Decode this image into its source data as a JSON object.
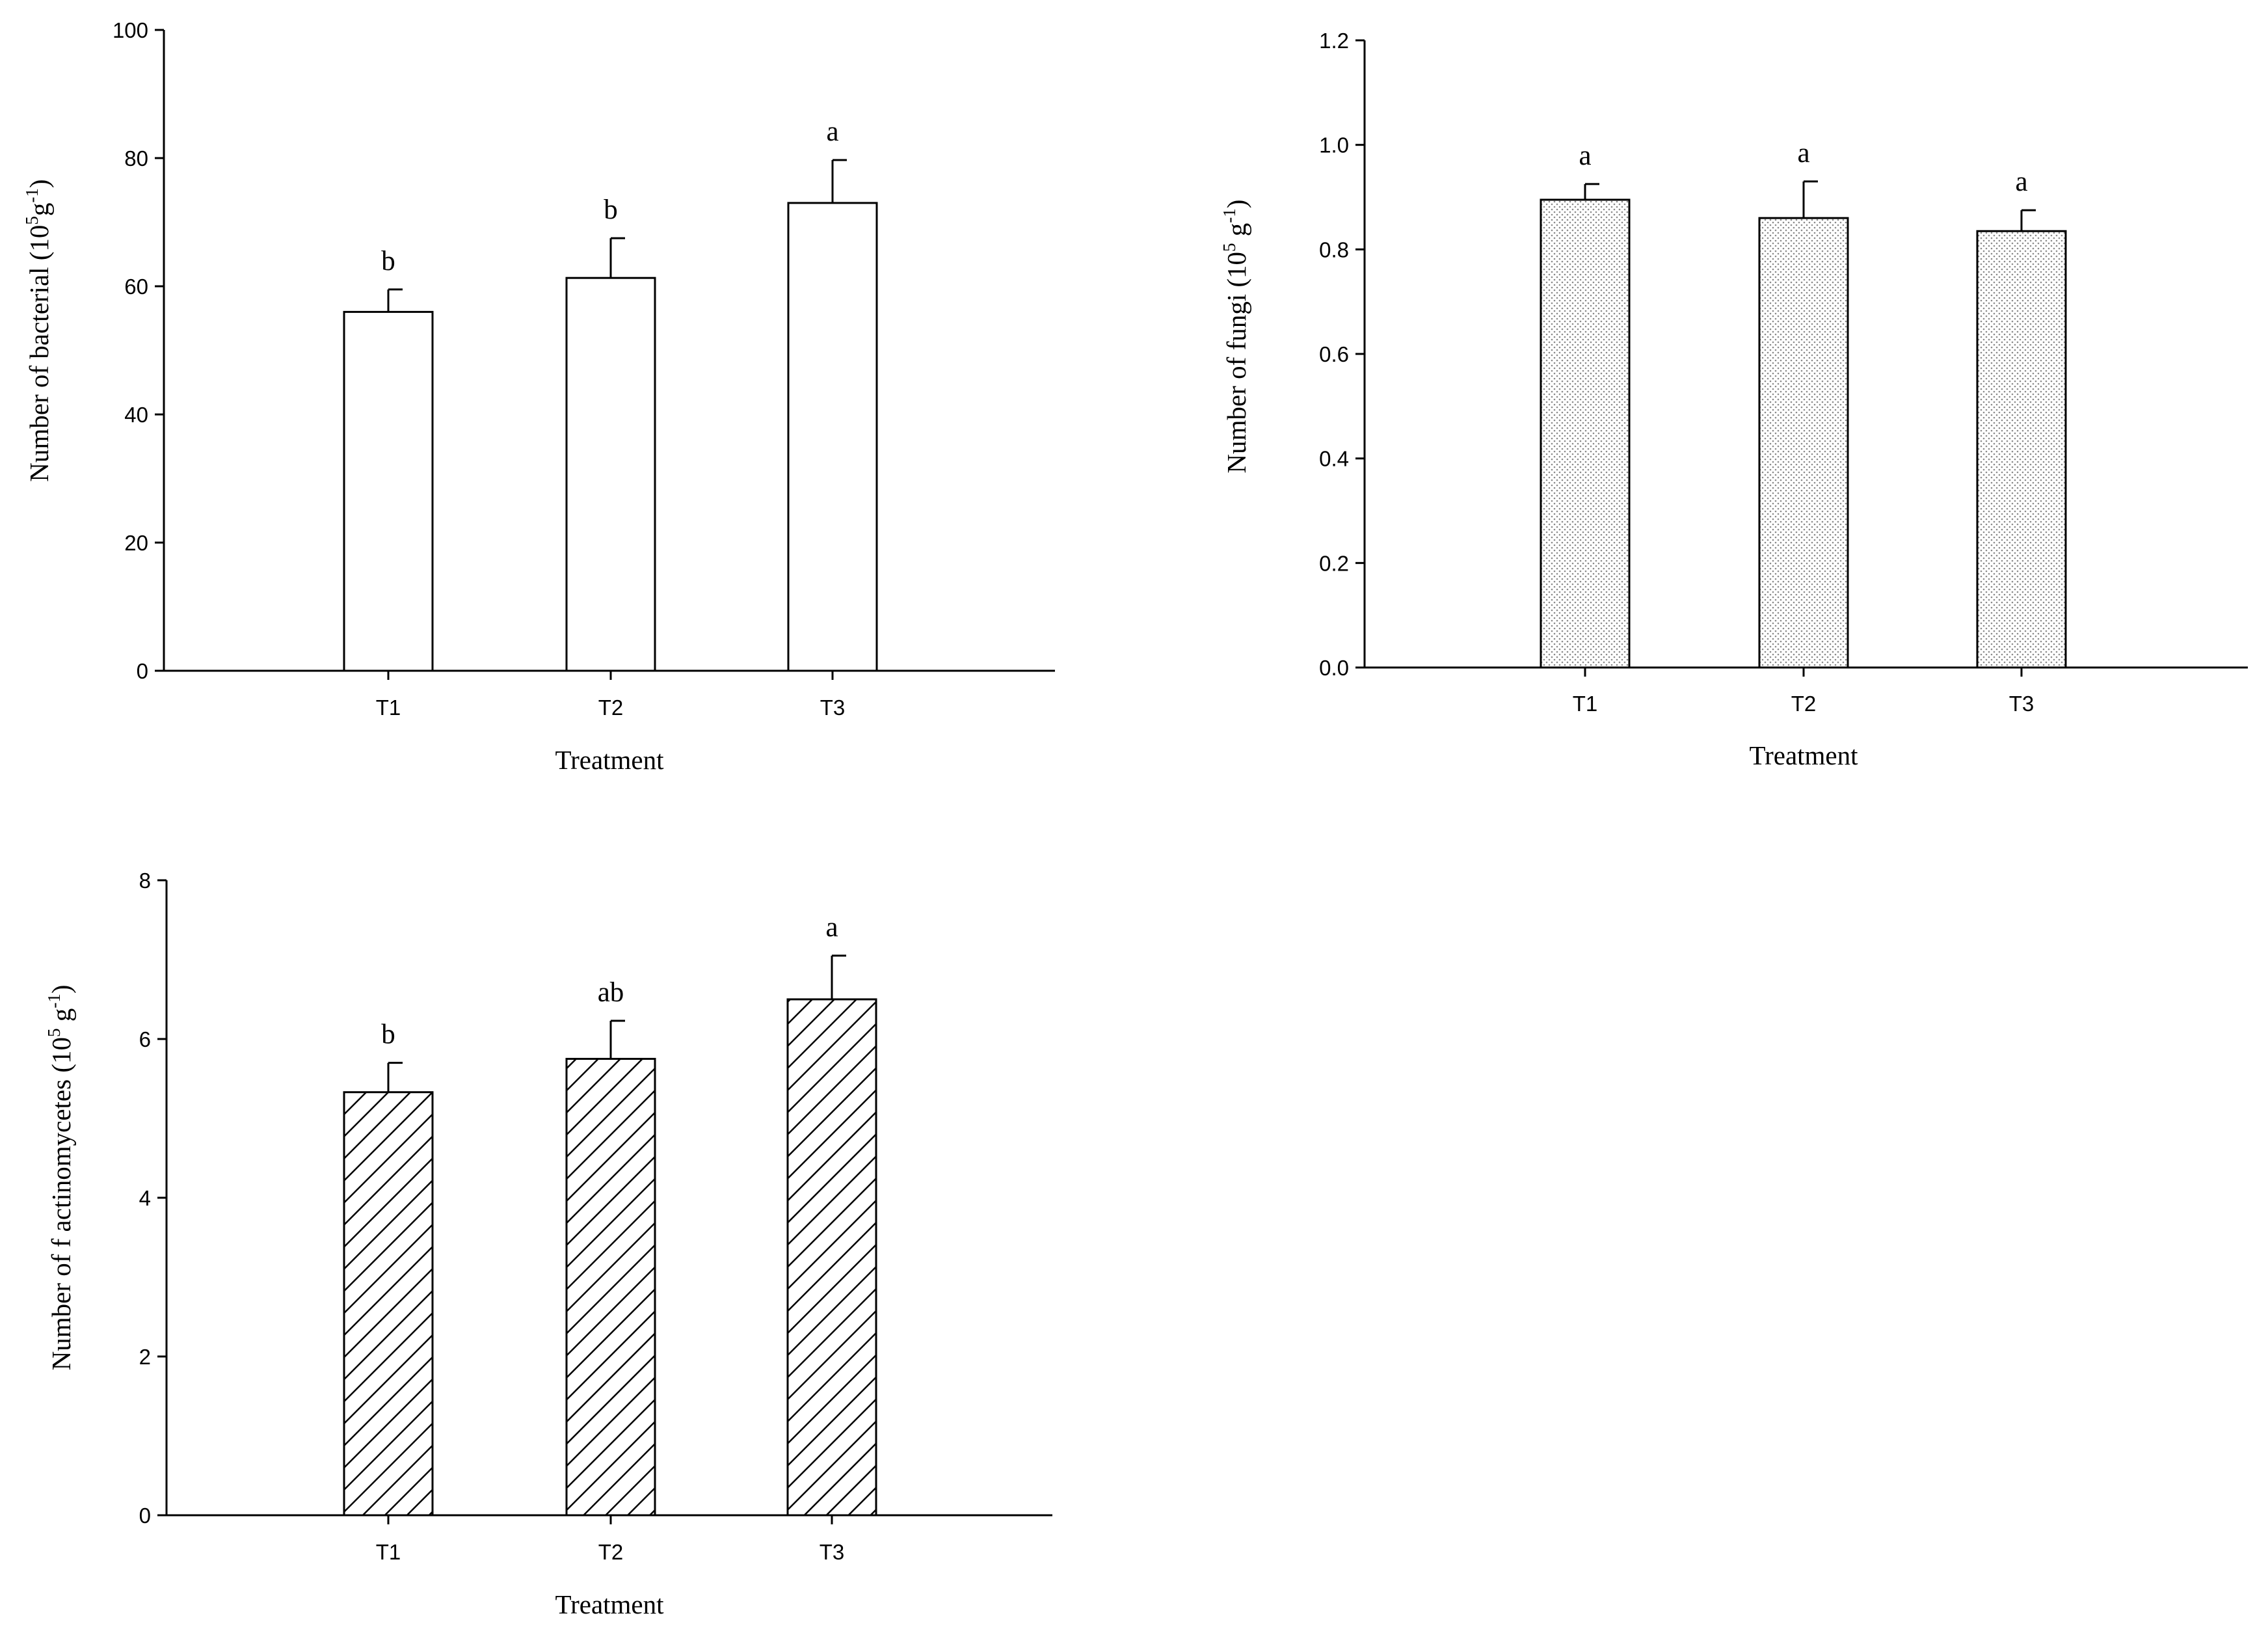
{
  "chart_data": [
    {
      "id": "bacteria",
      "type": "bar",
      "fill": "white",
      "title": "",
      "xlabel": "Treatment",
      "ylabel_parts": [
        "Number of bacterial (10",
        "5",
        "g",
        "-1",
        ")"
      ],
      "categories": [
        "T1",
        "T2",
        "T3"
      ],
      "values": [
        56,
        61.3,
        73
      ],
      "errors": [
        3.5,
        6.2,
        6.7
      ],
      "significance": [
        "b",
        "b",
        "a"
      ],
      "ylim": [
        0,
        100
      ],
      "yticks": [
        "0",
        "20",
        "40",
        "60",
        "80",
        "100"
      ],
      "grid": false
    },
    {
      "id": "fungi",
      "type": "bar",
      "fill": "dots",
      "title": "",
      "xlabel": "Treatment",
      "ylabel_parts": [
        "Number of fungi (10",
        "5",
        " g",
        "-1",
        ")"
      ],
      "categories": [
        "T1",
        "T2",
        "T3"
      ],
      "values": [
        0.895,
        0.86,
        0.835
      ],
      "errors": [
        0.03,
        0.07,
        0.04
      ],
      "significance": [
        "a",
        "a",
        "a"
      ],
      "ylim": [
        0,
        1.2
      ],
      "yticks": [
        "0.0",
        "0.2",
        "0.4",
        "0.6",
        "0.8",
        "1.0",
        "1.2"
      ],
      "grid": false
    },
    {
      "id": "actinomycetes",
      "type": "bar",
      "fill": "hatch",
      "title": "",
      "xlabel": "Treatment",
      "ylabel_parts": [
        "Number of f actinomycetes (10",
        "5",
        " g",
        "-1",
        ")"
      ],
      "categories": [
        "T1",
        "T2",
        "T3"
      ],
      "values": [
        5.33,
        5.75,
        6.5
      ],
      "errors": [
        0.37,
        0.48,
        0.55
      ],
      "significance": [
        "b",
        "ab",
        "a"
      ],
      "ylim": [
        0,
        8
      ],
      "yticks": [
        "0",
        "2",
        "4",
        "6",
        "8"
      ],
      "grid": false
    }
  ]
}
